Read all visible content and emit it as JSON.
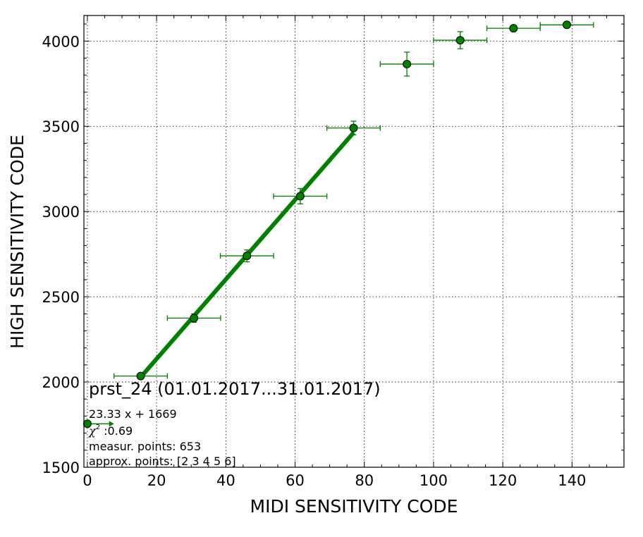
{
  "chart_data": {
    "type": "scatter",
    "title": "prst_24 (01.01.2017...31.01.2017)",
    "xlabel": "MIDI SENSITIVITY CODE",
    "ylabel": "HIGH SENSITIVITY CODE",
    "xlim": [
      -1,
      155
    ],
    "ylim": [
      1500,
      4150
    ],
    "x_ticks": [
      0,
      20,
      40,
      60,
      80,
      100,
      120,
      140
    ],
    "y_ticks": [
      1500,
      2000,
      2500,
      3000,
      3500,
      4000
    ],
    "grid": true,
    "color": "#008000",
    "points": [
      {
        "x": 0,
        "y": 1755,
        "xerr": 0,
        "yerr": 0
      },
      {
        "x": 15.4,
        "y": 2035,
        "xerr": 7.7,
        "yerr": 10
      },
      {
        "x": 30.8,
        "y": 2375,
        "xerr": 7.7,
        "yerr": 25
      },
      {
        "x": 46.1,
        "y": 2740,
        "xerr": 7.7,
        "yerr": 35
      },
      {
        "x": 61.5,
        "y": 3090,
        "xerr": 7.7,
        "yerr": 45
      },
      {
        "x": 76.9,
        "y": 3490,
        "xerr": 7.7,
        "yerr": 40
      },
      {
        "x": 92.3,
        "y": 3865,
        "xerr": 7.7,
        "yerr": 70
      },
      {
        "x": 107.7,
        "y": 4005,
        "xerr": 7.7,
        "yerr": 50
      },
      {
        "x": 123.1,
        "y": 4075,
        "xerr": 7.7,
        "yerr": 0
      },
      {
        "x": 138.5,
        "y": 4095,
        "xerr": 7.7,
        "yerr": 0
      }
    ],
    "fit": {
      "slope": 23.33,
      "intercept": 1669,
      "x_range": [
        15.4,
        76.9
      ]
    },
    "arrow": {
      "x_from": 0,
      "x_to": 7.7,
      "y": 1755
    }
  },
  "annotations": {
    "fit_label": "23.33 x + 1669",
    "chi_symbol": "χ",
    "chi_exponent": "2",
    "chi_value": " :0.69",
    "measur_points": "measur. points: 653",
    "approx_points": "approx. points: [2 3 4 5 6]"
  }
}
